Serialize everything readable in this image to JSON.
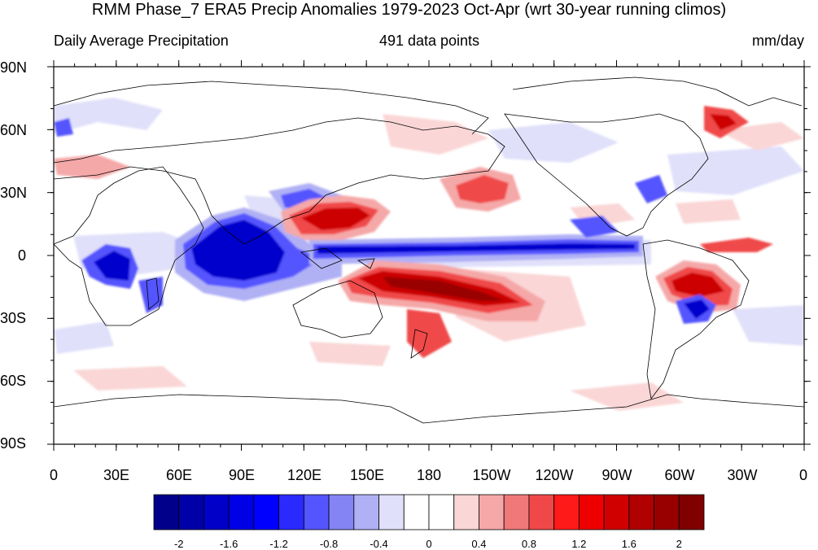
{
  "title": "RMM Phase_7 ERA5 Precip Anomalies 1979-2023 Oct-Apr (wrt 30-year running climos)",
  "left_subtitle": "Daily Average Precipitation",
  "center_subtitle": "491 data points",
  "right_subtitle": "mm/day",
  "y_axis_labels": [
    "90N",
    "60N",
    "30N",
    "0",
    "30S",
    "60S",
    "90S"
  ],
  "x_axis_labels": [
    "0",
    "30E",
    "60E",
    "90E",
    "120E",
    "150E",
    "180",
    "150W",
    "120W",
    "90W",
    "60W",
    "30W",
    "0"
  ],
  "colorbar": {
    "labels": [
      "-2",
      "-1.6",
      "-1.2",
      "-0.8",
      "-0.4",
      "0",
      "0.4",
      "0.8",
      "1.2",
      "1.6",
      "2"
    ],
    "colors": [
      "#00008b",
      "#0000a8",
      "#0000c8",
      "#0000e6",
      "#0000ff",
      "#2a2aff",
      "#5555ff",
      "#8484f5",
      "#b0b0f5",
      "#e0e0fa",
      "#ffffff",
      "#ffffff",
      "#fad6d6",
      "#f5a8a8",
      "#f07878",
      "#f04848",
      "#ff1a1a",
      "#ee0000",
      "#d00000",
      "#b00000",
      "#980000",
      "#800000"
    ]
  },
  "colors": {
    "neg_strong": "#0000cc",
    "neg_mid": "#5555ff",
    "neg_light": "#b0b0f5",
    "neg_faint": "#e0e0fa",
    "pos_faint": "#fad6d6",
    "pos_light": "#f5a8a8",
    "pos_mid": "#f04848",
    "pos_strong": "#cc0000",
    "pos_deep": "#990000"
  }
}
